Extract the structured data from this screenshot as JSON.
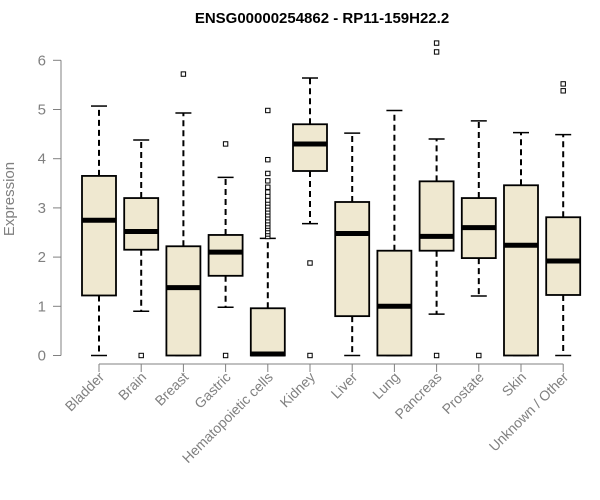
{
  "chart_data": {
    "type": "boxplot",
    "title": "ENSG00000254862 - RP11-159H22.2",
    "ylabel": "Expression",
    "xlabel": "",
    "ylim": [
      0,
      6.2
    ],
    "yticks": [
      0,
      1,
      2,
      3,
      4,
      5,
      6
    ],
    "ytick_labels": [
      "0",
      "1",
      "2",
      "3",
      "4",
      "5",
      "6"
    ],
    "categories": [
      "Bladder",
      "Brain",
      "Breast",
      "Gastric",
      "Hematopoietic cells",
      "Kidney",
      "Liver",
      "Lung",
      "Pancreas",
      "Prostate",
      "Skin",
      "Unknown / Other"
    ],
    "box_fill": "#efe8d0",
    "box_stroke": "#000000",
    "axis_color": "#808080",
    "boxes": [
      {
        "name": "Bladder",
        "whisker_low": 0,
        "q1": 1.22,
        "median": 2.75,
        "q3": 3.65,
        "whisker_high": 5.07,
        "outliers": []
      },
      {
        "name": "Brain",
        "whisker_low": 0.9,
        "q1": 2.15,
        "median": 2.52,
        "q3": 3.2,
        "whisker_high": 4.38,
        "outliers": [
          0
        ]
      },
      {
        "name": "Breast",
        "whisker_low": 0,
        "q1": 0,
        "median": 1.38,
        "q3": 2.22,
        "whisker_high": 4.93,
        "outliers": [
          5.72
        ]
      },
      {
        "name": "Gastric",
        "whisker_low": 0.98,
        "q1": 1.62,
        "median": 2.1,
        "q3": 2.45,
        "whisker_high": 3.62,
        "outliers": [
          0,
          4.3
        ]
      },
      {
        "name": "Hematopoietic cells",
        "whisker_low": 0,
        "q1": 0,
        "median": 0.03,
        "q3": 0.96,
        "whisker_high": 2.38,
        "outliers": [
          2.42,
          2.47,
          2.52,
          2.58,
          2.63,
          2.68,
          2.74,
          2.8,
          2.86,
          2.92,
          2.98,
          3.04,
          3.1,
          3.16,
          3.24,
          3.32,
          3.42,
          3.55,
          3.7,
          3.98,
          4.98
        ]
      },
      {
        "name": "Kidney",
        "whisker_low": 2.68,
        "q1": 3.75,
        "median": 4.3,
        "q3": 4.7,
        "whisker_high": 5.64,
        "outliers": [
          1.88,
          0
        ]
      },
      {
        "name": "Liver",
        "whisker_low": 0,
        "q1": 0.8,
        "median": 2.48,
        "q3": 3.12,
        "whisker_high": 4.52,
        "outliers": []
      },
      {
        "name": "Lung",
        "whisker_low": 0,
        "q1": 0,
        "median": 1.0,
        "q3": 2.13,
        "whisker_high": 4.98,
        "outliers": []
      },
      {
        "name": "Pancreas",
        "whisker_low": 0.84,
        "q1": 2.13,
        "median": 2.42,
        "q3": 3.54,
        "whisker_high": 4.4,
        "outliers": [
          0,
          6.17,
          6.35
        ]
      },
      {
        "name": "Prostate",
        "whisker_low": 1.21,
        "q1": 1.98,
        "median": 2.6,
        "q3": 3.2,
        "whisker_high": 4.77,
        "outliers": [
          0
        ]
      },
      {
        "name": "Skin",
        "whisker_low": 0,
        "q1": 0,
        "median": 2.24,
        "q3": 3.46,
        "whisker_high": 4.53,
        "outliers": []
      },
      {
        "name": "Unknown / Other",
        "whisker_low": 0,
        "q1": 1.23,
        "median": 1.92,
        "q3": 2.81,
        "whisker_high": 4.49,
        "outliers": [
          5.38,
          5.52
        ]
      }
    ]
  }
}
